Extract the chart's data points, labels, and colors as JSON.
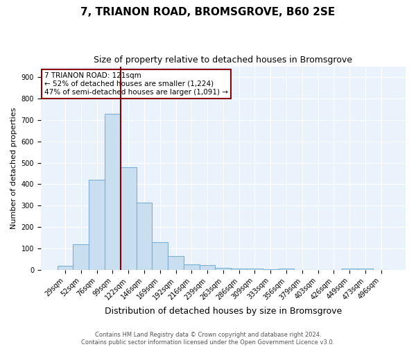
{
  "title": "7, TRIANON ROAD, BROMSGROVE, B60 2SE",
  "subtitle": "Size of property relative to detached houses in Bromsgrove",
  "xlabel": "Distribution of detached houses by size in Bromsgrove",
  "ylabel": "Number of detached properties",
  "footnote1": "Contains HM Land Registry data © Crown copyright and database right 2024.",
  "footnote2": "Contains public sector information licensed under the Open Government Licence v3.0.",
  "bar_labels": [
    "29sqm",
    "52sqm",
    "76sqm",
    "99sqm",
    "122sqm",
    "146sqm",
    "169sqm",
    "192sqm",
    "216sqm",
    "239sqm",
    "263sqm",
    "286sqm",
    "309sqm",
    "333sqm",
    "356sqm",
    "379sqm",
    "403sqm",
    "426sqm",
    "449sqm",
    "473sqm",
    "496sqm"
  ],
  "bar_values": [
    20,
    120,
    420,
    730,
    480,
    315,
    130,
    65,
    25,
    22,
    10,
    7,
    5,
    4,
    5,
    0,
    0,
    0,
    8,
    8,
    0
  ],
  "bar_color": "#c9dff0",
  "bar_edge_color": "#7bafd4",
  "vline_color": "#8B0000",
  "annotation_text": "7 TRIANON ROAD: 121sqm\n← 52% of detached houses are smaller (1,224)\n47% of semi-detached houses are larger (1,091) →",
  "annotation_box_color": "#ffffff",
  "annotation_box_edge_color": "#8B0000",
  "annotation_fontsize": 7.5,
  "ylim": [
    0,
    950
  ],
  "yticks": [
    0,
    100,
    200,
    300,
    400,
    500,
    600,
    700,
    800,
    900
  ],
  "title_fontsize": 11,
  "subtitle_fontsize": 9,
  "xlabel_fontsize": 9,
  "ylabel_fontsize": 8,
  "tick_fontsize": 7,
  "background_color": "#ffffff",
  "plot_background_color": "#eaf3fb",
  "footnote_fontsize": 6,
  "footnote_color": "#555555"
}
